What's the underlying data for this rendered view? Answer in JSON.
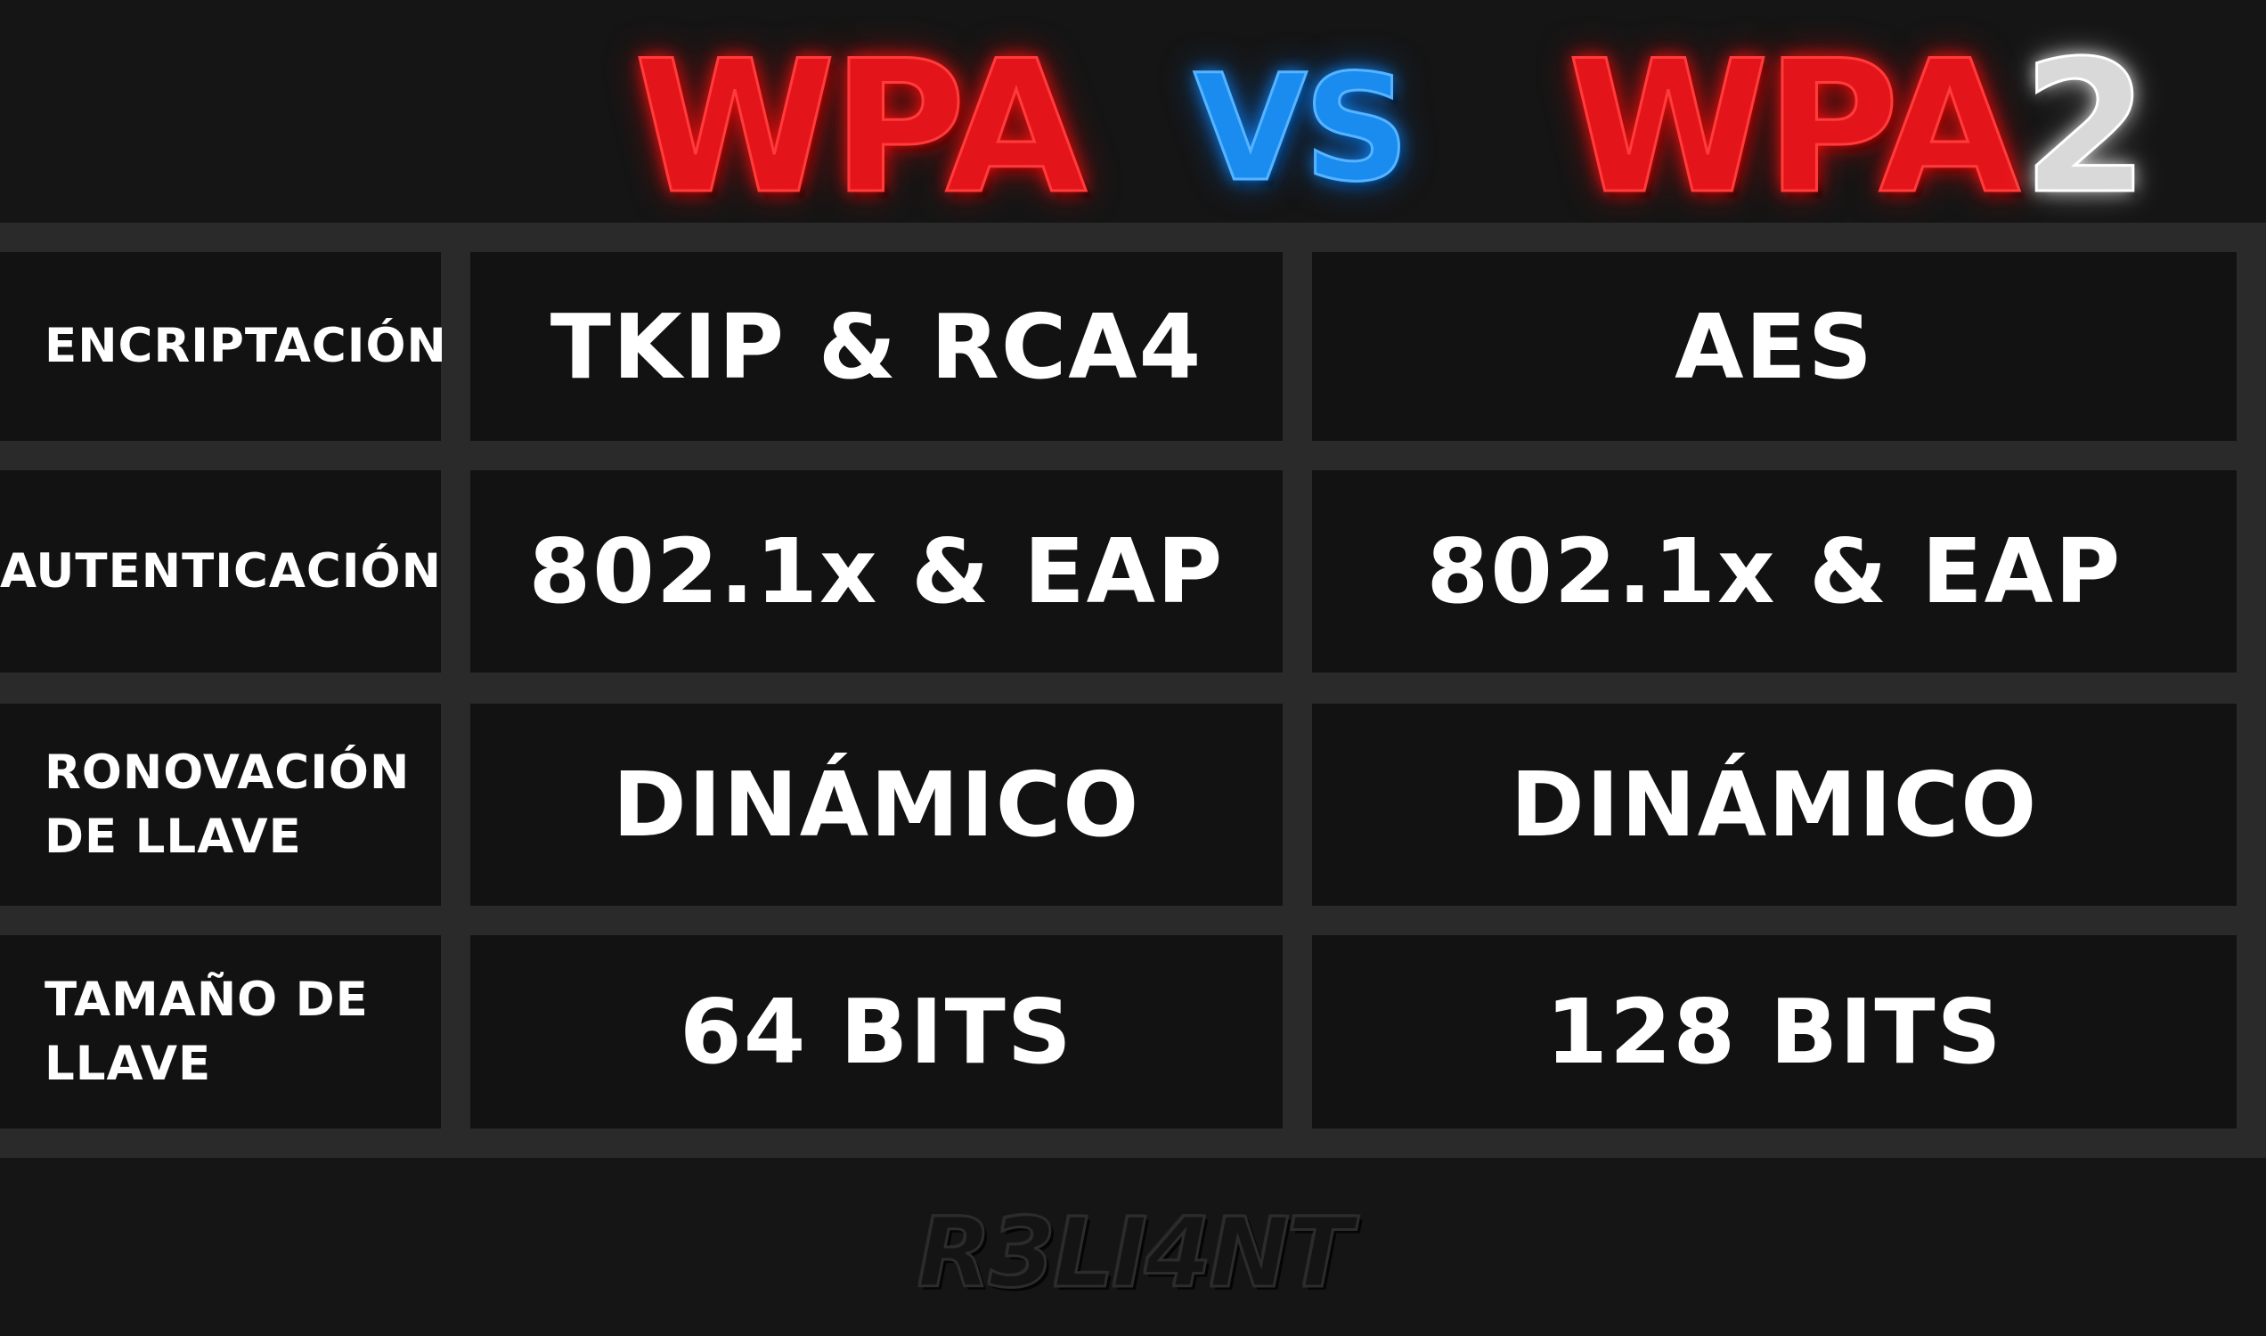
{
  "header": {
    "left_title": "WPA",
    "versus": "VS",
    "right_title": "WPA",
    "right_suffix": "2"
  },
  "rows": [
    {
      "label": "ENCRIPTACIÓN",
      "wpa": "TKIP & RCA4",
      "wpa2": "AES"
    },
    {
      "label": "AUTENTICACIÓN",
      "wpa": "802.1x & EAP",
      "wpa2": "802.1x & EAP"
    },
    {
      "label": "RONOVACIÓN DE LLAVE",
      "wpa": "DINÁMICO",
      "wpa2": "DINÁMICO"
    },
    {
      "label": "TAMAÑO DE LLAVE",
      "wpa": "64 BITS",
      "wpa2": "128 BITS"
    }
  ],
  "footer": {
    "watermark": "R3LI4NT"
  },
  "colors": {
    "background": "#151515",
    "cell": "#121212",
    "grid": "#2a2a2a",
    "wpa_red": "#e4151a",
    "vs_blue": "#1a8cf0",
    "two_white": "#d9d9d9"
  }
}
